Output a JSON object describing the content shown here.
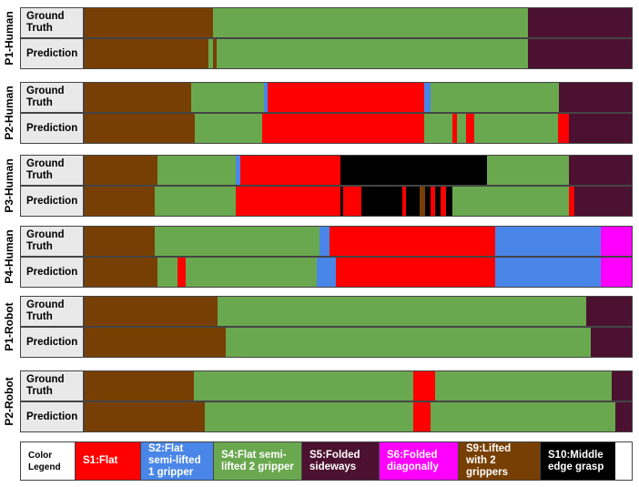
{
  "chart_data": {
    "type": "bar",
    "states": {
      "S1": {
        "label": "S1:Flat",
        "color": "#ff0000",
        "text_color": "#ffffff"
      },
      "S2": {
        "label": "S2:Flat semi-lifted 1 gripper",
        "color": "#4a86e8",
        "text_color": "#ffffff"
      },
      "S4": {
        "label": "S4:Flat semi-lifted 2 gripper",
        "color": "#6aa84f",
        "text_color": "#ffffff"
      },
      "S5": {
        "label": "S5:Folded sideways",
        "color": "#4c1130",
        "text_color": "#ffffff"
      },
      "S6": {
        "label": "S6:Folded diagonally",
        "color": "#ff00ff",
        "text_color": "#ffffff"
      },
      "S9": {
        "label": "S9:Lifted with 2 grippers",
        "color": "#783f04",
        "text_color": "#ffffff"
      },
      "S10": {
        "label": "S10:Middle edge grasp",
        "color": "#000000",
        "text_color": "#ffffff"
      }
    },
    "legend": {
      "title": "Color Legend",
      "order": [
        "S1",
        "S2",
        "S4",
        "S5",
        "S6",
        "S9",
        "S10"
      ]
    },
    "row_labels": {
      "gt": "Ground Truth",
      "pred": "Prediction"
    },
    "groups": [
      {
        "name": "P1-Human",
        "gt": [
          [
            "S9",
            0.235
          ],
          [
            "S4",
            0.81
          ],
          [
            "S5",
            1.0
          ]
        ],
        "pred": [
          [
            "S9",
            0.227
          ],
          [
            "S4",
            0.235
          ],
          [
            "S9",
            0.242
          ],
          [
            "S4",
            0.81
          ],
          [
            "S5",
            1.0
          ]
        ]
      },
      {
        "name": "P2-Human",
        "gt": [
          [
            "S9",
            0.195
          ],
          [
            "S4",
            0.328
          ],
          [
            "S2",
            0.335
          ],
          [
            "S1",
            0.62
          ],
          [
            "S2",
            0.632
          ],
          [
            "S4",
            0.867
          ],
          [
            "S5",
            1.0
          ]
        ],
        "pred": [
          [
            "S9",
            0.202
          ],
          [
            "S4",
            0.325
          ],
          [
            "S1",
            0.62
          ],
          [
            "S4",
            0.673
          ],
          [
            "S1",
            0.68
          ],
          [
            "S4",
            0.697
          ],
          [
            "S1",
            0.712
          ],
          [
            "S4",
            0.865
          ],
          [
            "S1",
            0.885
          ],
          [
            "S5",
            1.0
          ]
        ]
      },
      {
        "name": "P3-Human",
        "gt": [
          [
            "S9",
            0.133
          ],
          [
            "S4",
            0.277
          ],
          [
            "S2",
            0.285
          ],
          [
            "S1",
            0.468
          ],
          [
            "S10",
            0.735
          ],
          [
            "S4",
            0.885
          ],
          [
            "S5",
            1.0
          ]
        ],
        "pred": [
          [
            "S9",
            0.128
          ],
          [
            "S4",
            0.277
          ],
          [
            "S1",
            0.468
          ],
          [
            "S10",
            0.472
          ],
          [
            "S1",
            0.505
          ],
          [
            "S10",
            0.58
          ],
          [
            "S1",
            0.587
          ],
          [
            "S10",
            0.613
          ],
          [
            "S9",
            0.622
          ],
          [
            "S10",
            0.633
          ],
          [
            "S1",
            0.64
          ],
          [
            "S10",
            0.65
          ],
          [
            "S1",
            0.66
          ],
          [
            "S10",
            0.673
          ],
          [
            "S4",
            0.885
          ],
          [
            "S1",
            0.895
          ],
          [
            "S5",
            1.0
          ]
        ]
      },
      {
        "name": "P4-Human",
        "gt": [
          [
            "S9",
            0.128
          ],
          [
            "S4",
            0.43
          ],
          [
            "S2",
            0.448
          ],
          [
            "S1",
            0.75
          ],
          [
            "S2",
            0.943
          ],
          [
            "S6",
            1.0
          ]
        ],
        "pred": [
          [
            "S9",
            0.133
          ],
          [
            "S4",
            0.17
          ],
          [
            "S1",
            0.185
          ],
          [
            "S4",
            0.425
          ],
          [
            "S2",
            0.46
          ],
          [
            "S1",
            0.75
          ],
          [
            "S2",
            0.943
          ],
          [
            "S6",
            1.0
          ]
        ]
      },
      {
        "name": "P1-Robot",
        "gt": [
          [
            "S9",
            0.243
          ],
          [
            "S4",
            0.917
          ],
          [
            "S5",
            1.0
          ]
        ],
        "pred": [
          [
            "S9",
            0.258
          ],
          [
            "S4",
            0.925
          ],
          [
            "S5",
            1.0
          ]
        ]
      },
      {
        "name": "P2-Robot",
        "gt": [
          [
            "S9",
            0.2
          ],
          [
            "S4",
            0.6
          ],
          [
            "S1",
            0.64
          ],
          [
            "S4",
            0.963
          ],
          [
            "S5",
            1.0
          ]
        ],
        "pred": [
          [
            "S9",
            0.22
          ],
          [
            "S4",
            0.6
          ],
          [
            "S1",
            0.632
          ],
          [
            "S4",
            0.97
          ],
          [
            "S5",
            1.0
          ]
        ]
      }
    ]
  }
}
